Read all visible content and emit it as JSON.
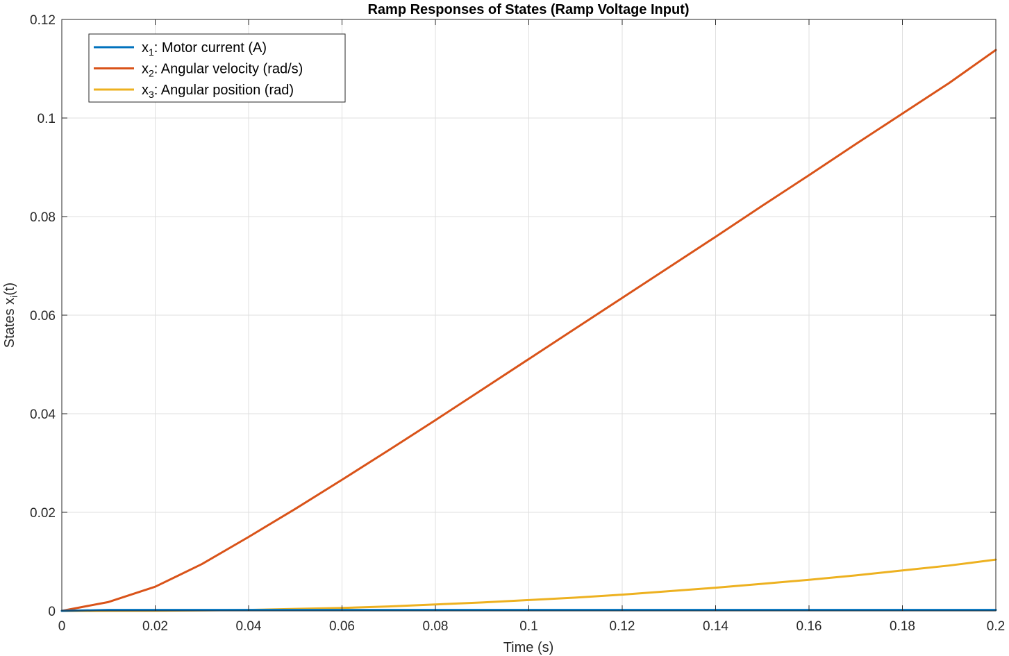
{
  "chart_data": {
    "type": "line",
    "title": "Ramp Responses of States (Ramp Voltage Input)",
    "xlabel": "Time (s)",
    "ylabel": {
      "main": "States x",
      "sub": "i",
      "tail": "(t)"
    },
    "xlim": [
      0,
      0.2
    ],
    "ylim": [
      0,
      0.12
    ],
    "xticks": [
      0,
      0.02,
      0.04,
      0.06,
      0.08,
      0.1,
      0.12,
      0.14,
      0.16,
      0.18,
      0.2
    ],
    "xtick_labels": [
      "0",
      "0.02",
      "0.04",
      "0.06",
      "0.08",
      "0.1",
      "0.12",
      "0.14",
      "0.16",
      "0.18",
      "0.2"
    ],
    "yticks": [
      0,
      0.02,
      0.04,
      0.06,
      0.08,
      0.1,
      0.12
    ],
    "ytick_labels": [
      "0",
      "0.02",
      "0.04",
      "0.06",
      "0.08",
      "0.1",
      "0.12"
    ],
    "grid": true,
    "legend_position": "top-left",
    "x": [
      0,
      0.01,
      0.02,
      0.03,
      0.04,
      0.05,
      0.06,
      0.07,
      0.08,
      0.09,
      0.1,
      0.11,
      0.12,
      0.13,
      0.14,
      0.15,
      0.16,
      0.17,
      0.18,
      0.19,
      0.2
    ],
    "series": [
      {
        "name_main": "x",
        "name_sub": "1",
        "name_tail": ":  Motor  current  (A)",
        "color": "#0072bd",
        "values": [
          0,
          0.0002,
          0.0002,
          0.0002,
          0.0002,
          0.0002,
          0.0002,
          0.0002,
          0.0002,
          0.0002,
          0.0002,
          0.0002,
          0.0002,
          0.0002,
          0.0002,
          0.0002,
          0.0002,
          0.0002,
          0.0002,
          0.0002,
          0.0002
        ]
      },
      {
        "name_main": "x",
        "name_sub": "2",
        "name_tail": ":  Angular  velocity  (rad/s)",
        "color": "#d95319",
        "values": [
          0,
          0.0018,
          0.0049,
          0.0095,
          0.015,
          0.0207,
          0.0266,
          0.0326,
          0.0387,
          0.0449,
          0.0511,
          0.0573,
          0.0635,
          0.0697,
          0.0759,
          0.0822,
          0.0884,
          0.0947,
          0.1009,
          0.1071,
          0.1138
        ]
      },
      {
        "name_main": "x",
        "name_sub": "3",
        "name_tail": ":  Angular  position  (rad)",
        "color": "#edb120",
        "values": [
          0,
          1e-05,
          4e-05,
          0.0001,
          0.0002,
          0.0004,
          0.0006,
          0.0009,
          0.0013,
          0.0017,
          0.0022,
          0.0027,
          0.0033,
          0.004,
          0.0047,
          0.0055,
          0.0063,
          0.0072,
          0.0082,
          0.0092,
          0.0104
        ]
      }
    ]
  }
}
